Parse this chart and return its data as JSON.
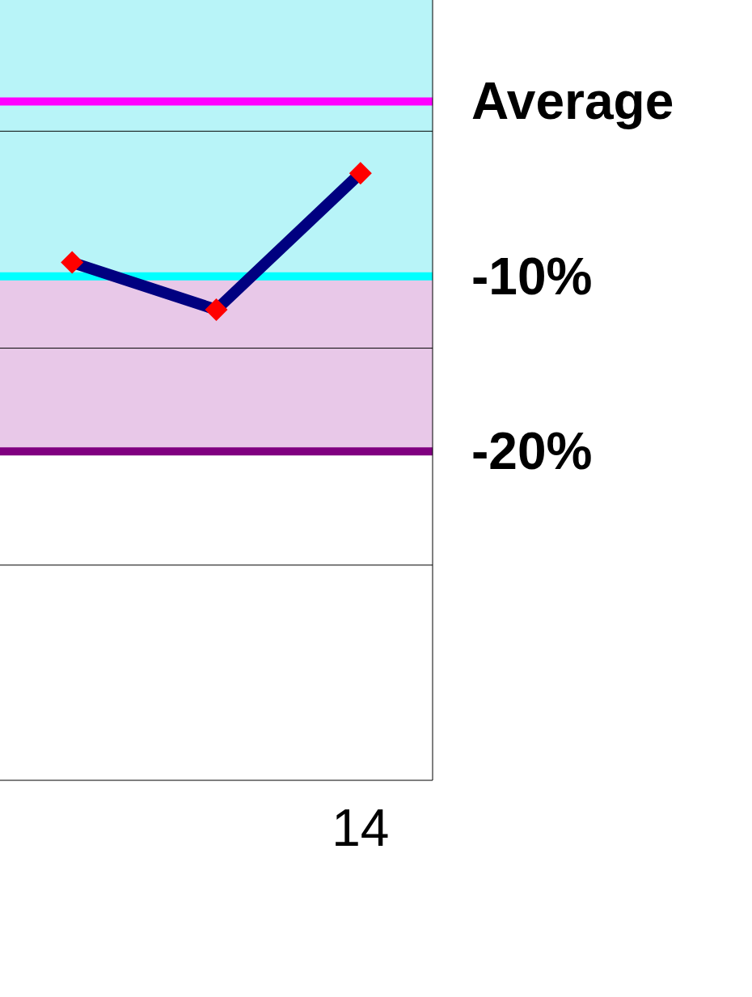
{
  "chart_data": {
    "type": "line",
    "categories": [
      null,
      null,
      "14"
    ],
    "series": [
      {
        "color": "#000080",
        "values": [
          -9.2,
          -11.9,
          -4.1
        ]
      },
      {
        "type": "scatter",
        "color": "#ff0000",
        "marker": "diamond",
        "values": [
          -9.2,
          -11.9,
          -4.1
        ]
      }
    ],
    "ylim": [
      -38.8,
      5.8
    ],
    "yticks": [
      {
        "value": 0,
        "label": "Average"
      },
      {
        "value": -10,
        "label": "-10%"
      },
      {
        "value": -20,
        "label": "-20%"
      }
    ],
    "bands": [
      {
        "axis": "y",
        "from": -10,
        "to": 5.8,
        "color": "#b8f4f8"
      },
      {
        "axis": "y",
        "from": -20,
        "to": -10,
        "color": "#e8c8e8"
      }
    ],
    "ref_lines": [
      {
        "axis": "y",
        "value": 0,
        "color": "#ff00ff"
      },
      {
        "axis": "y",
        "value": -10,
        "color": "#00ffff"
      },
      {
        "axis": "y",
        "value": -20,
        "color": "#800080"
      },
      {
        "axis": "y",
        "value": -1.7,
        "color": "#000000"
      },
      {
        "axis": "y",
        "value": -14.1,
        "color": "#000000"
      },
      {
        "axis": "y",
        "value": -26.5,
        "color": "#000000"
      }
    ]
  }
}
